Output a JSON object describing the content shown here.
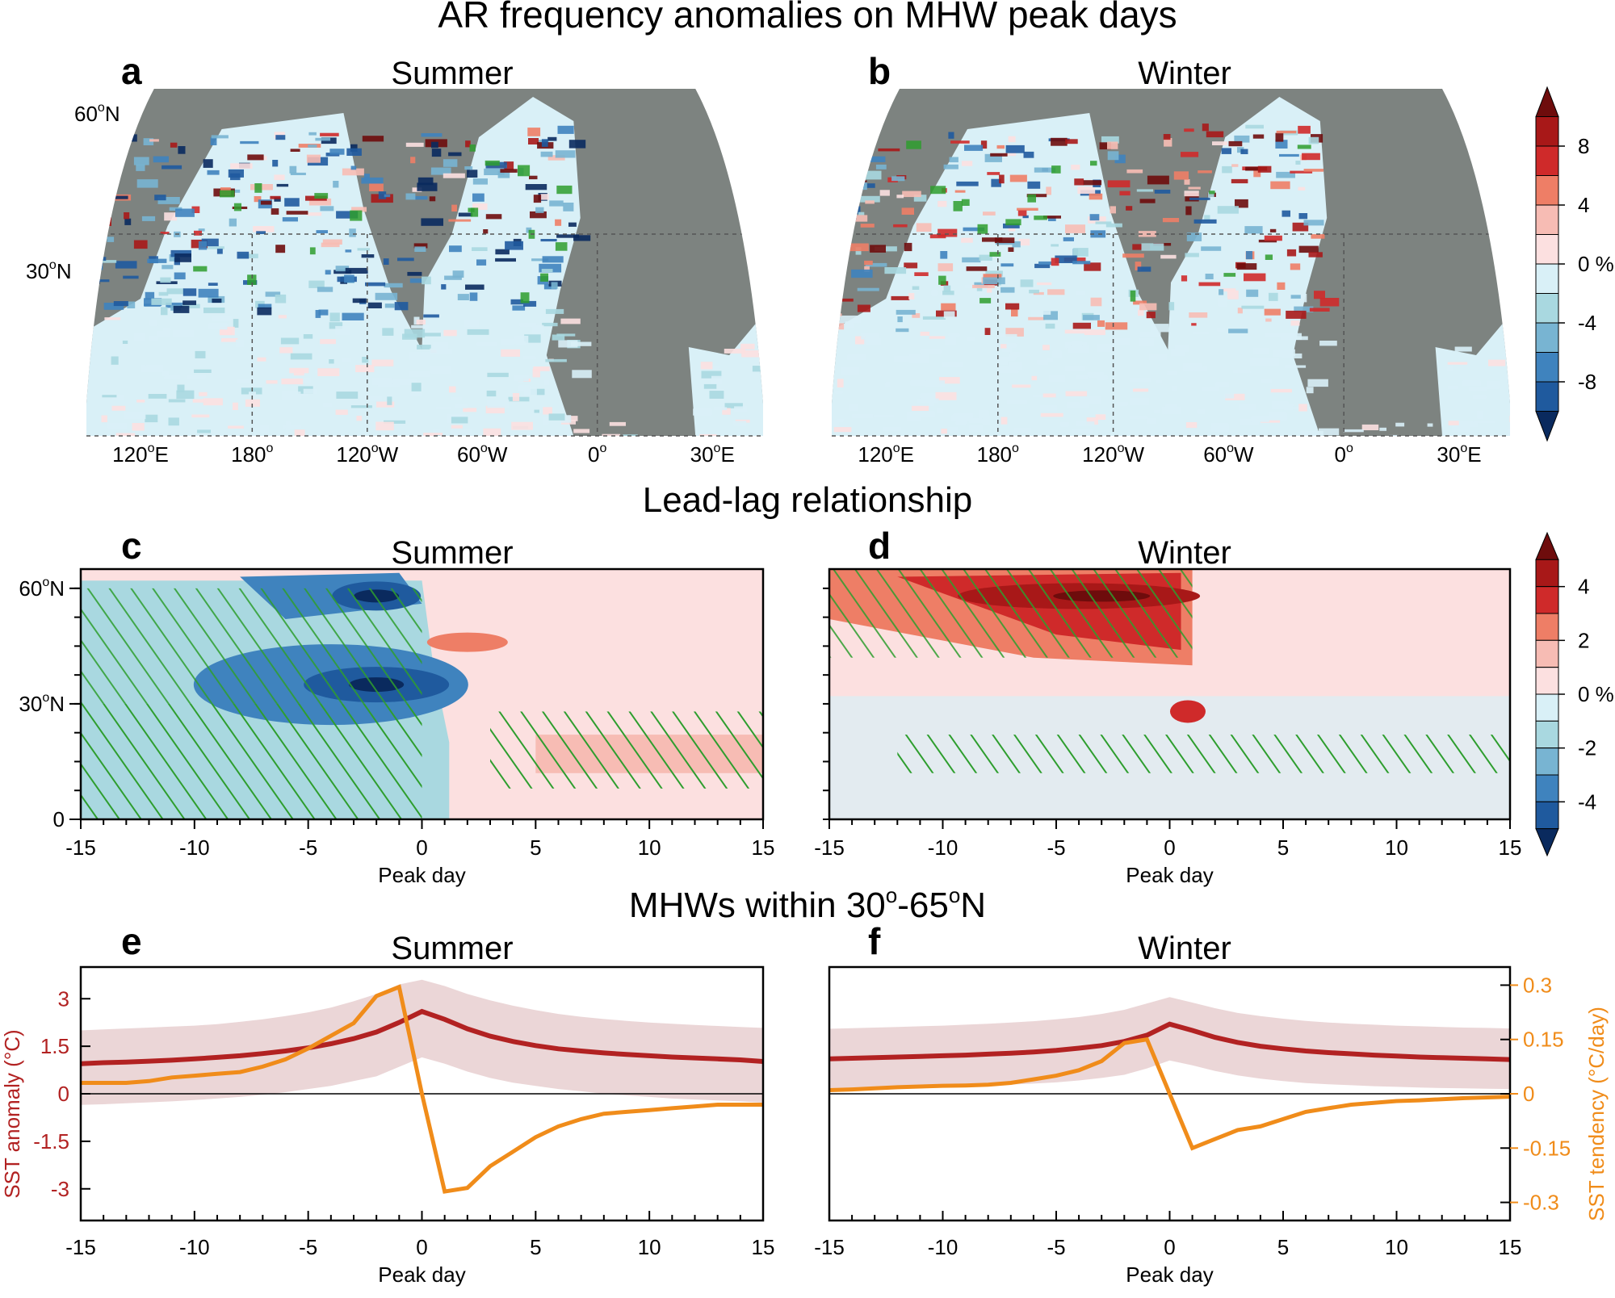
{
  "sections": {
    "maps_title": "AR frequency anomalies on MHW peak days",
    "leadlag_title": "Lead-lag relationship",
    "lines_title_pre": "MHWs within 30",
    "lines_title_mid": "-65",
    "lines_title_post": "N"
  },
  "panels": {
    "a": {
      "letter": "a",
      "season": "Summer"
    },
    "b": {
      "letter": "b",
      "season": "Winter"
    },
    "c": {
      "letter": "c",
      "season": "Summer"
    },
    "d": {
      "letter": "d",
      "season": "Winter"
    },
    "e": {
      "letter": "e",
      "season": "Summer"
    },
    "f": {
      "letter": "f",
      "season": "Winter"
    }
  },
  "map_axes": {
    "lat_labels": [
      "60",
      "30"
    ],
    "lon_labels": [
      "120",
      "180",
      "120",
      "60",
      "0",
      "30"
    ],
    "lon_suffixes": [
      "E",
      "",
      "W",
      "W",
      "",
      "E"
    ]
  },
  "colorbar_maps": {
    "labels": [
      "8",
      "4",
      "0 %",
      "-4",
      "-8"
    ]
  },
  "colorbar_leadlag": {
    "labels": [
      "4",
      "2",
      "0 %",
      "-2",
      "-4"
    ]
  },
  "leadlag_axes": {
    "y_labels": [
      "60",
      "30",
      "0"
    ],
    "y_suffix": "N",
    "x_ticks": [
      "-15",
      "-10",
      "-5",
      "0",
      "5",
      "10",
      "15"
    ],
    "xlabel": "Peak day"
  },
  "line_axes": {
    "left_ticks": [
      "3",
      "1.5",
      "0",
      "-1.5",
      "-3"
    ],
    "right_ticks": [
      "0.3",
      "0.15",
      "0",
      "-0.15",
      "-0.3"
    ],
    "ylabel_left": "SST anomaly (°C)",
    "ylabel_right": "SST tendency (°C/day)",
    "x_ticks": [
      "-15",
      "-10",
      "-5",
      "0",
      "5",
      "10",
      "15"
    ],
    "xlabel": "Peak day"
  },
  "colors": {
    "land": "#7d8380",
    "anomaly_line": "#b22222",
    "anomaly_band": "#e8cfd0",
    "tendency_line": "#f08c1a",
    "hatch": "#2e9e2e"
  },
  "colormap": [
    "#0a2a5e",
    "#1f5a9e",
    "#3f83be",
    "#78b4d2",
    "#a9d8e0",
    "#d9f0f7",
    "#fce0e0",
    "#f7bcb4",
    "#ee7e66",
    "#cf2a2a",
    "#a81818",
    "#6e0c0c"
  ],
  "chart_data": [
    {
      "panel": "e",
      "type": "line",
      "title": "Summer",
      "xlabel": "Peak day",
      "ylabel": "SST anomaly (°C)",
      "ylabel_right": "SST tendency (°C/day)",
      "xlim": [
        -15,
        15
      ],
      "ylim": [
        -4,
        4
      ],
      "ylim_right": [
        -0.35,
        0.35
      ],
      "x": [
        -15,
        -14,
        -13,
        -12,
        -11,
        -10,
        -9,
        -8,
        -7,
        -6,
        -5,
        -4,
        -3,
        -2,
        -1,
        0,
        1,
        2,
        3,
        4,
        5,
        6,
        7,
        8,
        9,
        10,
        11,
        12,
        13,
        14,
        15
      ],
      "series": [
        {
          "name": "SST anomaly",
          "axis": "left",
          "values": [
            0.95,
            0.98,
            1.0,
            1.03,
            1.06,
            1.1,
            1.15,
            1.2,
            1.27,
            1.35,
            1.45,
            1.58,
            1.74,
            1.95,
            2.25,
            2.6,
            2.35,
            2.05,
            1.82,
            1.65,
            1.52,
            1.42,
            1.35,
            1.29,
            1.24,
            1.2,
            1.16,
            1.13,
            1.1,
            1.07,
            1.02
          ],
          "lower": [
            -0.35,
            -0.33,
            -0.3,
            -0.27,
            -0.24,
            -0.2,
            -0.15,
            -0.1,
            -0.03,
            0.05,
            0.15,
            0.25,
            0.4,
            0.55,
            0.85,
            1.15,
            0.95,
            0.7,
            0.5,
            0.35,
            0.25,
            0.15,
            0.08,
            0.0,
            -0.05,
            -0.1,
            -0.15,
            -0.18,
            -0.21,
            -0.24,
            -0.28
          ],
          "upper": [
            2.0,
            2.03,
            2.06,
            2.09,
            2.12,
            2.15,
            2.2,
            2.27,
            2.35,
            2.45,
            2.57,
            2.72,
            2.92,
            3.15,
            3.45,
            3.6,
            3.4,
            3.15,
            2.95,
            2.78,
            2.64,
            2.52,
            2.43,
            2.36,
            2.3,
            2.25,
            2.21,
            2.17,
            2.14,
            2.11,
            2.08
          ]
        },
        {
          "name": "SST tendency",
          "axis": "right",
          "values": [
            0.03,
            0.03,
            0.03,
            0.035,
            0.045,
            0.05,
            0.055,
            0.06,
            0.075,
            0.095,
            0.125,
            0.16,
            0.195,
            0.27,
            0.295,
            0.0,
            -0.27,
            -0.26,
            -0.2,
            -0.16,
            -0.12,
            -0.09,
            -0.07,
            -0.055,
            -0.05,
            -0.045,
            -0.04,
            -0.035,
            -0.03,
            -0.03,
            -0.03
          ]
        }
      ]
    },
    {
      "panel": "f",
      "type": "line",
      "title": "Winter",
      "xlabel": "Peak day",
      "ylabel": "SST anomaly (°C)",
      "ylabel_right": "SST tendency (°C/day)",
      "xlim": [
        -15,
        15
      ],
      "ylim": [
        -4,
        4
      ],
      "ylim_right": [
        -0.35,
        0.35
      ],
      "x": [
        -15,
        -14,
        -13,
        -12,
        -11,
        -10,
        -9,
        -8,
        -7,
        -6,
        -5,
        -4,
        -3,
        -2,
        -1,
        0,
        1,
        2,
        3,
        4,
        5,
        6,
        7,
        8,
        9,
        10,
        11,
        12,
        13,
        14,
        15
      ],
      "series": [
        {
          "name": "SST anomaly",
          "axis": "left",
          "values": [
            1.1,
            1.12,
            1.14,
            1.16,
            1.18,
            1.2,
            1.22,
            1.25,
            1.28,
            1.32,
            1.37,
            1.44,
            1.52,
            1.65,
            1.85,
            2.2,
            2.0,
            1.78,
            1.62,
            1.5,
            1.42,
            1.35,
            1.3,
            1.26,
            1.22,
            1.19,
            1.16,
            1.14,
            1.12,
            1.1,
            1.08
          ],
          "lower": [
            0.15,
            0.17,
            0.19,
            0.2,
            0.22,
            0.24,
            0.25,
            0.27,
            0.29,
            0.32,
            0.36,
            0.42,
            0.5,
            0.6,
            0.8,
            1.05,
            0.9,
            0.72,
            0.58,
            0.48,
            0.4,
            0.34,
            0.3,
            0.27,
            0.24,
            0.22,
            0.2,
            0.18,
            0.17,
            0.16,
            0.15
          ],
          "upper": [
            2.05,
            2.07,
            2.09,
            2.11,
            2.13,
            2.15,
            2.18,
            2.21,
            2.25,
            2.29,
            2.35,
            2.42,
            2.52,
            2.65,
            2.85,
            3.05,
            2.88,
            2.7,
            2.55,
            2.45,
            2.37,
            2.3,
            2.25,
            2.21,
            2.18,
            2.15,
            2.13,
            2.11,
            2.09,
            2.08,
            2.06
          ]
        },
        {
          "name": "SST tendency",
          "axis": "right",
          "values": [
            0.01,
            0.012,
            0.015,
            0.018,
            0.02,
            0.022,
            0.023,
            0.025,
            0.03,
            0.04,
            0.05,
            0.065,
            0.09,
            0.14,
            0.15,
            0.0,
            -0.15,
            -0.125,
            -0.1,
            -0.09,
            -0.07,
            -0.05,
            -0.04,
            -0.03,
            -0.025,
            -0.02,
            -0.018,
            -0.015,
            -0.012,
            -0.01,
            -0.008
          ]
        }
      ]
    }
  ]
}
